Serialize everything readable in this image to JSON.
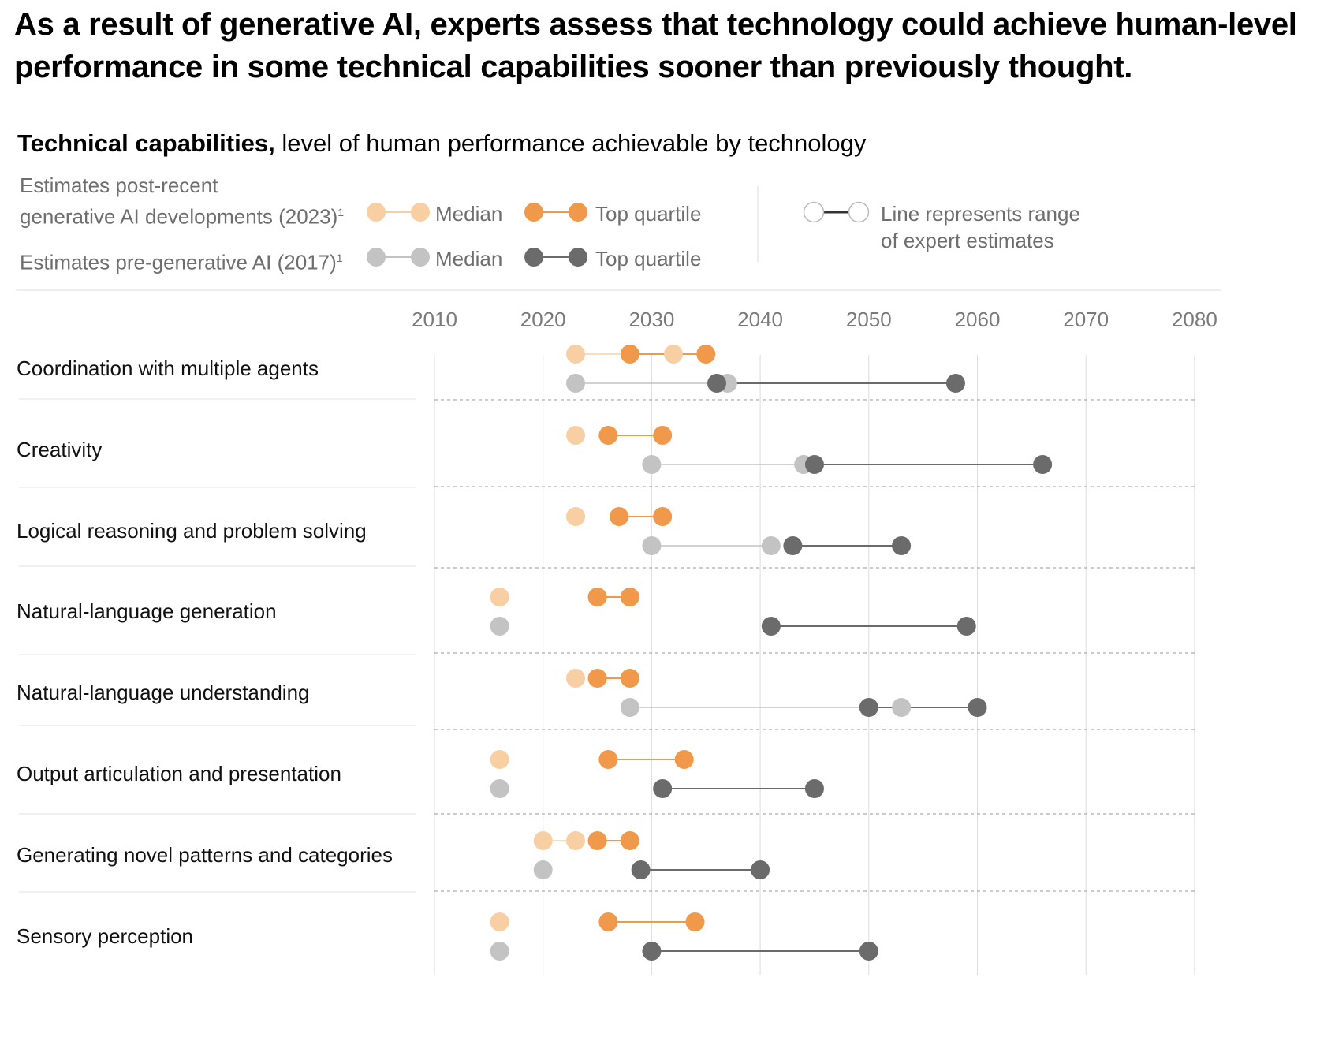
{
  "title": "As a result of generative AI, experts assess that technology could achieve human-level performance in some technical capabilities sooner than previously thought.",
  "subtitle_bold": "Technical capabilities,",
  "subtitle_rest": " level of human performance achievable by technology",
  "legend": {
    "post_label_line1": "Estimates post-recent",
    "post_label_line2": "generative AI developments (2023)",
    "pre_label": "Estimates pre-generative AI (2017)",
    "footnote_mark": "1",
    "median": "Median",
    "top_quartile": "Top quartile",
    "range_line1": "Line represents range",
    "range_line2": "of expert estimates"
  },
  "colors": {
    "post_median": "#f8cfa3",
    "post_top": "#f0994a",
    "pre_median": "#c3c3c3",
    "pre_top": "#6b6b6b",
    "grid": "#dddddd",
    "separator": "#9a9a9a"
  },
  "chart_data": {
    "type": "dot-range",
    "title": "Technical capabilities, level of human performance achievable by technology",
    "x_ticks": [
      2010,
      2020,
      2030,
      2040,
      2050,
      2060,
      2070,
      2080
    ],
    "xlim": [
      2010,
      2080
    ],
    "categories": [
      "Coordination with multiple agents",
      "Creativity",
      "Logical reasoning and problem solving",
      "Natural-language generation",
      "Natural-language understanding",
      "Output articulation and presentation",
      "Generating novel patterns and categories",
      "Sensory perception"
    ],
    "series": [
      {
        "name": "Estimates post-recent generative AI developments (2023) – Median",
        "range": [
          [
            2023,
            2032
          ],
          [
            2023,
            2023
          ],
          [
            2023,
            2023
          ],
          [
            2016,
            2016
          ],
          [
            2023,
            2023
          ],
          [
            2016,
            2016
          ],
          [
            2020,
            2023
          ],
          [
            2016,
            2016
          ]
        ]
      },
      {
        "name": "Estimates post-recent generative AI developments (2023) – Top quartile",
        "range": [
          [
            2028,
            2035
          ],
          [
            2026,
            2031
          ],
          [
            2027,
            2031
          ],
          [
            2025,
            2028
          ],
          [
            2025,
            2028
          ],
          [
            2026,
            2033
          ],
          [
            2025,
            2028
          ],
          [
            2026,
            2034
          ]
        ]
      },
      {
        "name": "Estimates pre-generative AI (2017) – Median",
        "range": [
          [
            2023,
            2037
          ],
          [
            2030,
            2044
          ],
          [
            2030,
            2041
          ],
          [
            2016,
            2016
          ],
          [
            2028,
            2053
          ],
          [
            2016,
            2016
          ],
          [
            2020,
            2020
          ],
          [
            2016,
            2016
          ]
        ]
      },
      {
        "name": "Estimates pre-generative AI (2017) – Top quartile",
        "range": [
          [
            2036,
            2058
          ],
          [
            2045,
            2066
          ],
          [
            2043,
            2053
          ],
          [
            2041,
            2059
          ],
          [
            2050,
            2060
          ],
          [
            2031,
            2045
          ],
          [
            2029,
            2040
          ],
          [
            2030,
            2050
          ]
        ]
      }
    ]
  }
}
